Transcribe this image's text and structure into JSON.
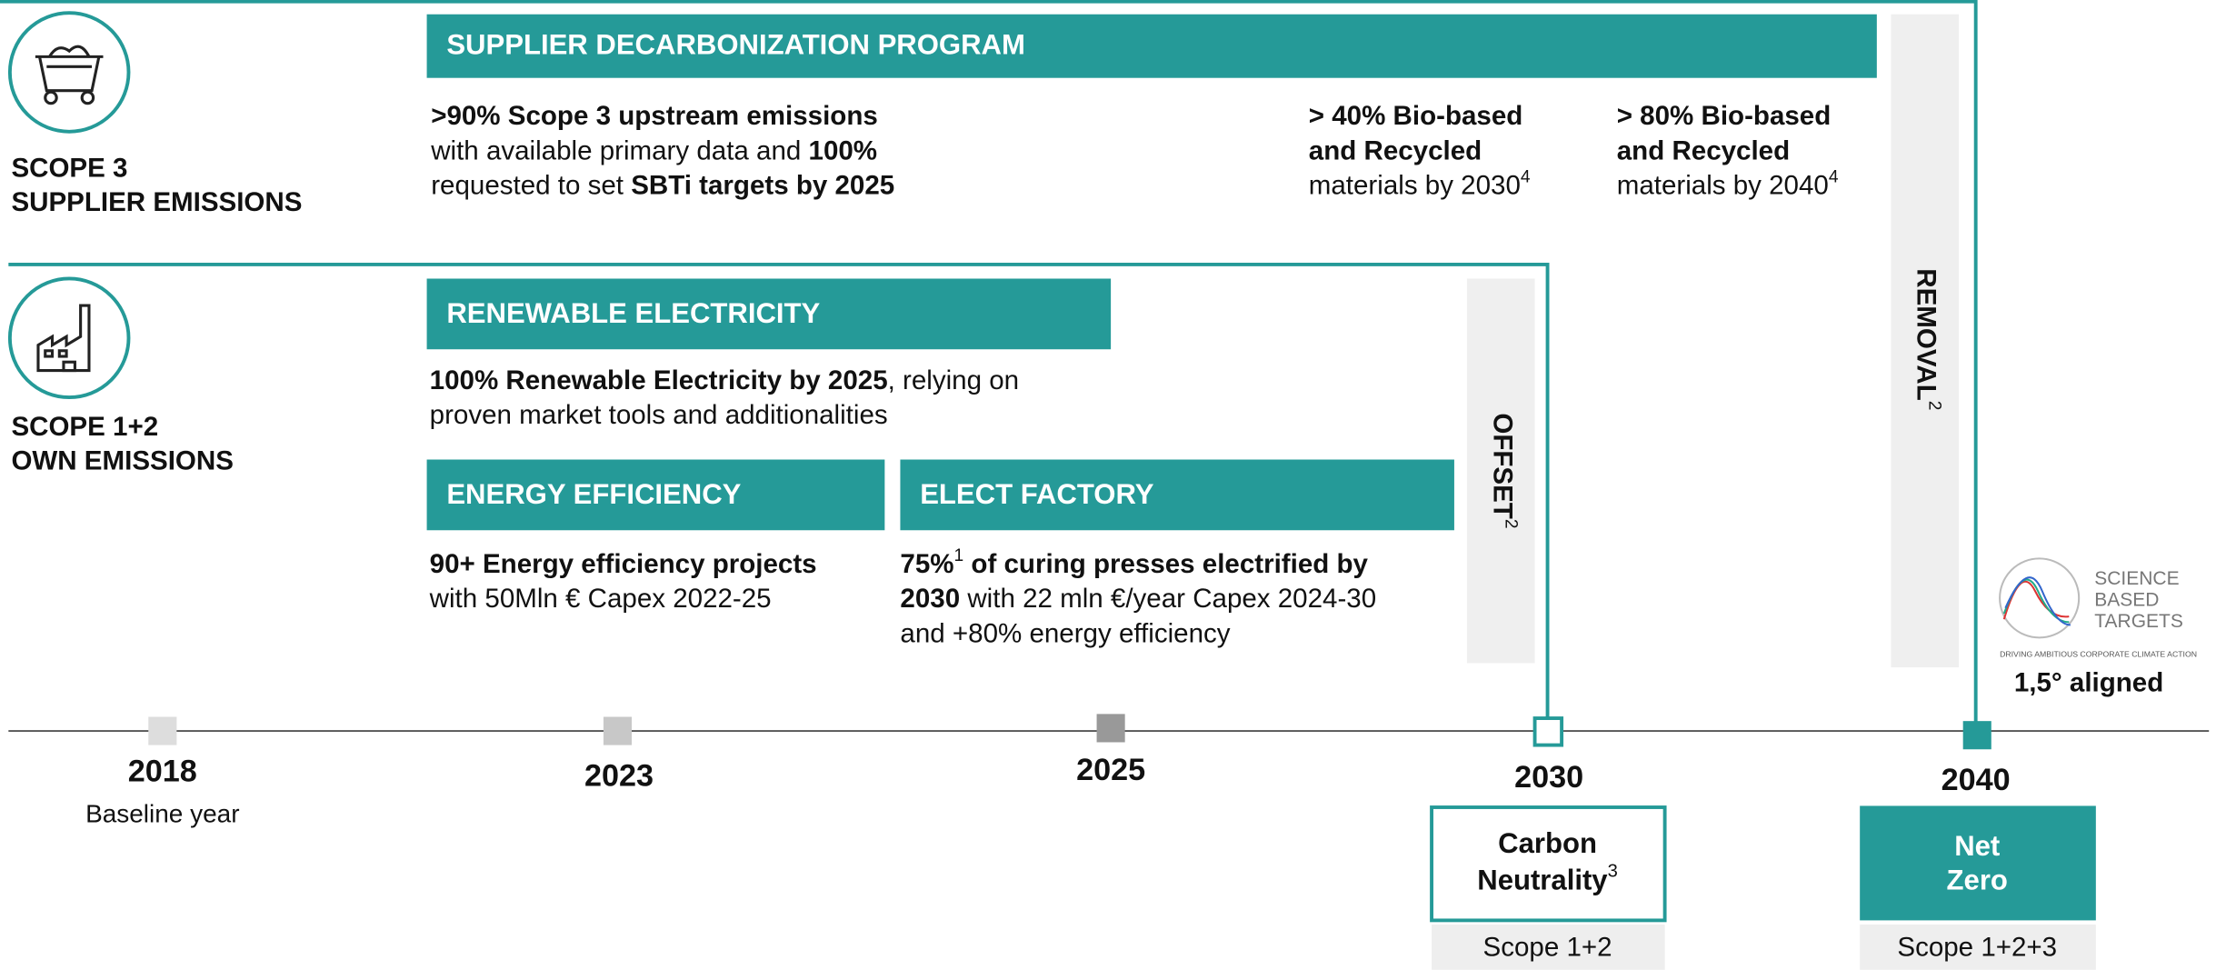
{
  "scope3": {
    "label": [
      "SCOPE 3",
      "SUPPLIER EMISSIONS"
    ],
    "banner": "SUPPLIER DECARBONIZATION PROGRAM",
    "targets": [
      [
        [
          {
            "text": ">90% Scope 3 upstream emissions",
            "bold": true
          }
        ],
        [
          {
            "text": "with available primary data and "
          },
          {
            "text": "100%",
            "bold": true
          }
        ],
        [
          {
            "text": "requested to set "
          },
          {
            "text": "SBTi targets by 2025",
            "bold": true
          }
        ]
      ],
      [
        [
          {
            "text": "> 40% Bio-based",
            "bold": true
          }
        ],
        [
          {
            "text": "and Recycled",
            "bold": true
          }
        ],
        [
          {
            "text": "materials by 2030"
          },
          {
            "text": "4",
            "sup": true
          }
        ]
      ],
      [
        [
          {
            "text": "> 80% Bio-based",
            "bold": true
          }
        ],
        [
          {
            "text": "and Recycled",
            "bold": true
          }
        ],
        [
          {
            "text": "materials by 2040"
          },
          {
            "text": "4",
            "sup": true
          }
        ]
      ]
    ]
  },
  "scope12": {
    "label": [
      "SCOPE 1+2",
      "OWN EMISSIONS"
    ],
    "renewable": {
      "title": "RENEWABLE ELECTRICITY",
      "text": [
        [
          {
            "text": "100% Renewable Electricity by 2025",
            "bold": true
          },
          {
            "text": ", relying on"
          }
        ],
        [
          {
            "text": "proven market tools and additionalities"
          }
        ]
      ]
    },
    "efficiency": {
      "title": "ENERGY EFFICIENCY",
      "text": [
        [
          {
            "text": "90+ Energy efficiency projects",
            "bold": true
          }
        ],
        [
          {
            "text": "with 50Mln € Capex 2022-25"
          }
        ]
      ]
    },
    "factory": {
      "title": "ELECT FACTORY",
      "text": [
        [
          {
            "text": "75%",
            "bold": true
          },
          {
            "text": "1",
            "sup": true
          },
          {
            "text": " of curing presses electrified by",
            "bold": true
          }
        ],
        [
          {
            "text": "2030",
            "bold": true
          },
          {
            "text": " with 22 mln €/year Capex 2024-30"
          }
        ],
        [
          {
            "text": "and +80% energy efficiency"
          }
        ]
      ]
    }
  },
  "offset": [
    {
      "text": "OFFSET",
      "bold": true
    },
    {
      "text": "2",
      "sup": true
    }
  ],
  "removal": [
    {
      "text": "REMOVAL",
      "bold": true
    },
    {
      "text": "2",
      "sup": true
    }
  ],
  "timeline": {
    "years": [
      {
        "year": "2018",
        "note": "Baseline year"
      },
      {
        "year": "2023"
      },
      {
        "year": "2025"
      },
      {
        "year": "2030"
      },
      {
        "year": "2040"
      }
    ],
    "carbon_neutrality": {
      "title": [
        [
          {
            "text": "Carbon"
          }
        ],
        [
          {
            "text": "Neutrality"
          },
          {
            "text": "3",
            "sup": true
          }
        ]
      ],
      "scope": "Scope 1+2"
    },
    "net_zero": {
      "title": [
        [
          {
            "text": "Net"
          }
        ],
        [
          {
            "text": "Zero"
          }
        ]
      ],
      "scope": "Scope 1+2+3"
    }
  },
  "sbt": {
    "logo": [
      "SCIENCE",
      "BASED",
      "TARGETS"
    ],
    "tagline": "DRIVING AMBITIOUS CORPORATE CLIMATE ACTION",
    "aligned": "1,5° aligned"
  }
}
